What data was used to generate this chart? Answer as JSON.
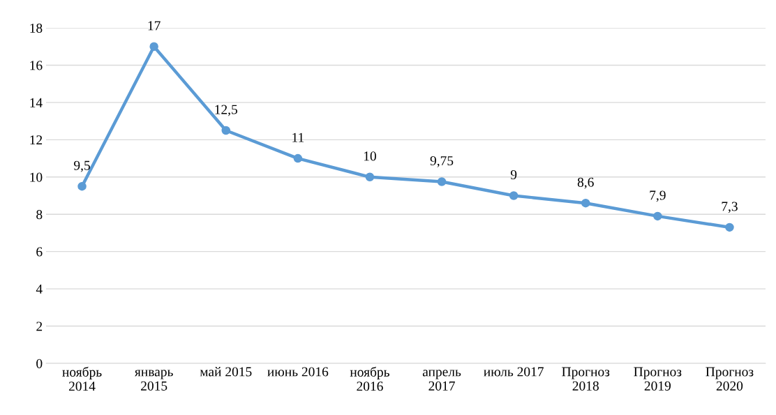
{
  "chart_data": {
    "type": "line",
    "categories": [
      "ноябрь\n2014",
      "январь\n2015",
      "май 2015",
      "июнь 2016",
      "ноябрь\n2016",
      "апрель\n2017",
      "июль 2017",
      "Прогноз\n2018",
      "Прогноз\n2019",
      "Прогноз\n2020"
    ],
    "series": [
      {
        "color": "#5b9bd5",
        "values": [
          9.5,
          17,
          12.5,
          11,
          10,
          9.75,
          9,
          8.6,
          7.9,
          7.3
        ],
        "value_labels": [
          "9,5",
          "17",
          "12,5",
          "11",
          "10",
          "9,75",
          "9",
          "8,6",
          "7,9",
          "7,3"
        ]
      }
    ],
    "ylim": [
      0,
      18
    ],
    "yticks": [
      0,
      2,
      4,
      6,
      8,
      10,
      12,
      14,
      16,
      18
    ],
    "grid": "y",
    "marker": "circle",
    "line_style": "solid",
    "legend": false
  }
}
